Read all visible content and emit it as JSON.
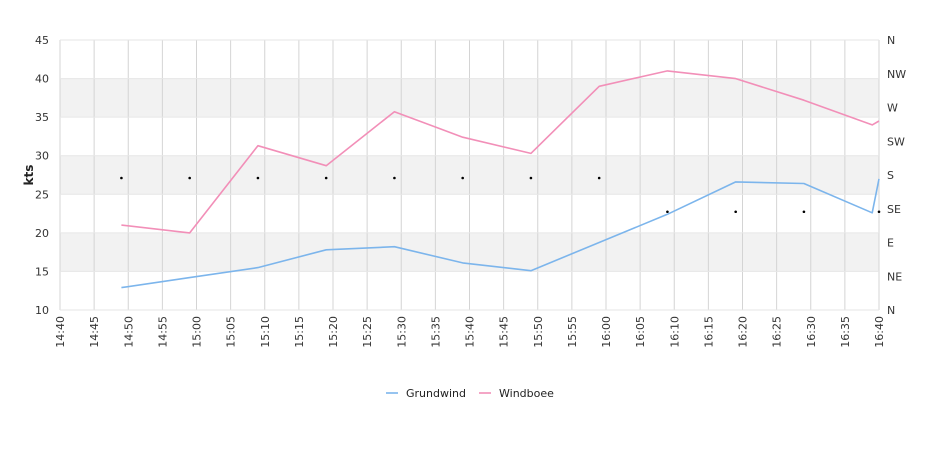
{
  "chart_data": {
    "type": "line",
    "title": "",
    "xlabel": "",
    "ylabel": "kts",
    "ylim": [
      10,
      45
    ],
    "yticks": [
      10,
      15,
      20,
      25,
      30,
      35,
      40,
      45
    ],
    "xlim": [
      "14:40",
      "16:40"
    ],
    "xticks": [
      "14:40",
      "14:45",
      "14:50",
      "14:55",
      "15:00",
      "15:05",
      "15:10",
      "15:15",
      "15:20",
      "15:25",
      "15:30",
      "15:35",
      "15:40",
      "15:45",
      "15:50",
      "15:55",
      "16:00",
      "16:05",
      "16:10",
      "16:15",
      "16:20",
      "16:25",
      "16:30",
      "16:35",
      "16:40"
    ],
    "direction_axis": {
      "labels": [
        "N",
        "NE",
        "E",
        "SE",
        "S",
        "SW",
        "W",
        "NW",
        "N"
      ]
    },
    "grid": true,
    "legend_position": "bottom",
    "series": [
      {
        "name": "Grundwind",
        "color": "#7cb5ec",
        "x": [
          "14:49",
          "14:59",
          "15:09",
          "15:19",
          "15:29",
          "15:39",
          "15:49",
          "16:09",
          "16:19",
          "16:29",
          "16:39",
          "16:40"
        ],
        "values": [
          12.9,
          14.2,
          15.5,
          17.8,
          18.2,
          16.1,
          15.1,
          22.4,
          26.6,
          26.4,
          22.6,
          27.0
        ]
      },
      {
        "name": "Windboee",
        "color": "#f28fb8",
        "x": [
          "14:49",
          "14:59",
          "15:09",
          "15:19",
          "15:29",
          "15:39",
          "15:49",
          "15:59",
          "16:09",
          "16:19",
          "16:29",
          "16:39",
          "16:40"
        ],
        "values": [
          21.0,
          20.0,
          31.3,
          28.7,
          35.7,
          32.4,
          30.3,
          39.0,
          41.0,
          40.0,
          37.2,
          34.0,
          34.5
        ]
      }
    ],
    "direction_points": {
      "x": [
        "14:49",
        "14:59",
        "15:09",
        "15:19",
        "15:29",
        "15:39",
        "15:49",
        "15:59",
        "16:09",
        "16:19",
        "16:29",
        "16:40"
      ],
      "values": [
        "S",
        "S",
        "S",
        "S",
        "S",
        "S",
        "S",
        "S",
        "SE",
        "SE",
        "SE",
        "SE"
      ]
    }
  }
}
